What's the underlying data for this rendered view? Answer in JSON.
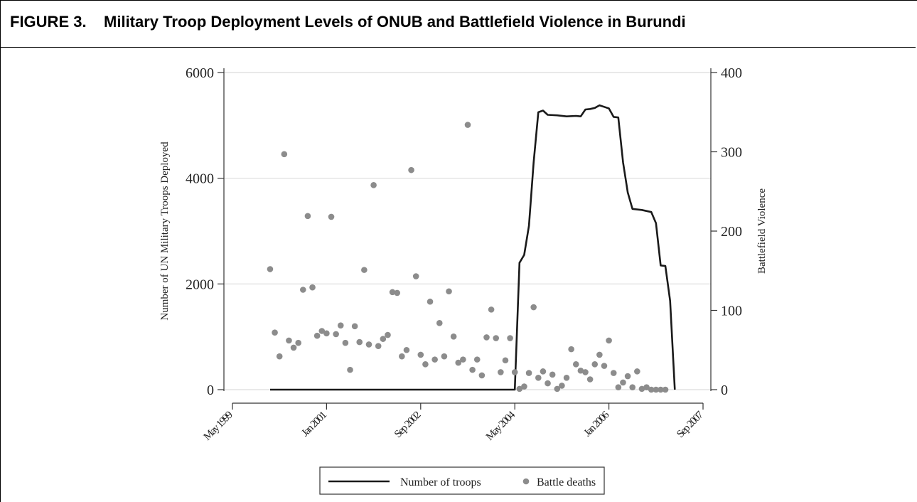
{
  "figure": {
    "title": "FIGURE 3.    Military Troop Deployment Levels of ONUB and Battlefield Violence in Burundi"
  },
  "chart_data": {
    "type": "line",
    "xlabel": "",
    "ylabel_left": "Number of UN Military Troops Deployed",
    "ylabel_right": "Battlefield Violence",
    "ylim_left": [
      0,
      6000
    ],
    "ylim_right": [
      0,
      400
    ],
    "xlim": [
      "1999-05",
      "2007-09"
    ],
    "grid": true,
    "x_ticks": [
      {
        "label": "May 1999",
        "date": "1999-05"
      },
      {
        "label": "Jan 2001",
        "date": "2001-01"
      },
      {
        "label": "Sep 2002",
        "date": "2002-09"
      },
      {
        "label": "May 2004",
        "date": "2004-05"
      },
      {
        "label": "Jan 2006",
        "date": "2006-01"
      },
      {
        "label": "Sep 2007",
        "date": "2007-09"
      }
    ],
    "y_ticks_left": [
      0,
      2000,
      4000,
      6000
    ],
    "y_ticks_right": [
      0,
      100,
      200,
      300,
      400
    ],
    "legend_position": "bottom",
    "series": [
      {
        "name": "Number of troops",
        "axis": "left",
        "style": "line",
        "color": "#1a1a1a",
        "points": [
          [
            "2000-01",
            0
          ],
          [
            "2004-05",
            0
          ],
          [
            "2004-06",
            2400
          ],
          [
            "2004-07",
            2550
          ],
          [
            "2004-08",
            3100
          ],
          [
            "2004-09",
            4300
          ],
          [
            "2004-10",
            5250
          ],
          [
            "2004-11",
            5280
          ],
          [
            "2004-12",
            5200
          ],
          [
            "2005-02",
            5190
          ],
          [
            "2005-04",
            5170
          ],
          [
            "2005-06",
            5180
          ],
          [
            "2005-07",
            5170
          ],
          [
            "2005-08",
            5300
          ],
          [
            "2005-09",
            5310
          ],
          [
            "2005-10",
            5330
          ],
          [
            "2005-11",
            5380
          ],
          [
            "2005-12",
            5350
          ],
          [
            "2006-01",
            5320
          ],
          [
            "2006-02",
            5160
          ],
          [
            "2006-03",
            5150
          ],
          [
            "2006-04",
            4300
          ],
          [
            "2006-05",
            3730
          ],
          [
            "2006-06",
            3420
          ],
          [
            "2006-08",
            3400
          ],
          [
            "2006-10",
            3360
          ],
          [
            "2006-11",
            3150
          ],
          [
            "2006-12",
            2350
          ],
          [
            "2007-01",
            2340
          ],
          [
            "2007-02",
            1680
          ],
          [
            "2007-03",
            0
          ]
        ]
      },
      {
        "name": "Battle deaths",
        "axis": "right",
        "style": "scatter",
        "color": "#8c8c8c",
        "points": [
          [
            "2000-01",
            152
          ],
          [
            "2000-02",
            72
          ],
          [
            "2000-03",
            42
          ],
          [
            "2000-04",
            297
          ],
          [
            "2000-05",
            62
          ],
          [
            "2000-06",
            53
          ],
          [
            "2000-07",
            59
          ],
          [
            "2000-08",
            126
          ],
          [
            "2000-09",
            219
          ],
          [
            "2000-10",
            129
          ],
          [
            "2000-11",
            68
          ],
          [
            "2000-12",
            74
          ],
          [
            "2001-01",
            71
          ],
          [
            "2001-02",
            218
          ],
          [
            "2001-03",
            70
          ],
          [
            "2001-04",
            81
          ],
          [
            "2001-05",
            59
          ],
          [
            "2001-06",
            25
          ],
          [
            "2001-07",
            80
          ],
          [
            "2001-08",
            60
          ],
          [
            "2001-09",
            151
          ],
          [
            "2001-10",
            57
          ],
          [
            "2001-11",
            258
          ],
          [
            "2001-12",
            55
          ],
          [
            "2002-01",
            64
          ],
          [
            "2002-02",
            69
          ],
          [
            "2002-03",
            123
          ],
          [
            "2002-04",
            122
          ],
          [
            "2002-05",
            42
          ],
          [
            "2002-06",
            50
          ],
          [
            "2002-07",
            277
          ],
          [
            "2002-08",
            143
          ],
          [
            "2002-09",
            44
          ],
          [
            "2002-10",
            32
          ],
          [
            "2002-11",
            111
          ],
          [
            "2002-12",
            38
          ],
          [
            "2003-01",
            84
          ],
          [
            "2003-02",
            42
          ],
          [
            "2003-03",
            124
          ],
          [
            "2003-04",
            67
          ],
          [
            "2003-05",
            34
          ],
          [
            "2003-06",
            38
          ],
          [
            "2003-07",
            334
          ],
          [
            "2003-08",
            25
          ],
          [
            "2003-09",
            38
          ],
          [
            "2003-10",
            18
          ],
          [
            "2003-11",
            66
          ],
          [
            "2003-12",
            101
          ],
          [
            "2004-01",
            65
          ],
          [
            "2004-02",
            22
          ],
          [
            "2004-03",
            37
          ],
          [
            "2004-04",
            65
          ],
          [
            "2004-05",
            22
          ],
          [
            "2004-06",
            1
          ],
          [
            "2004-07",
            4
          ],
          [
            "2004-08",
            21
          ],
          [
            "2004-09",
            104
          ],
          [
            "2004-10",
            15
          ],
          [
            "2004-11",
            23
          ],
          [
            "2004-12",
            8
          ],
          [
            "2005-01",
            19
          ],
          [
            "2005-02",
            1
          ],
          [
            "2005-03",
            5
          ],
          [
            "2005-04",
            15
          ],
          [
            "2005-05",
            51
          ],
          [
            "2005-06",
            32
          ],
          [
            "2005-07",
            24
          ],
          [
            "2005-08",
            22
          ],
          [
            "2005-09",
            13
          ],
          [
            "2005-10",
            32
          ],
          [
            "2005-11",
            44
          ],
          [
            "2005-12",
            30
          ],
          [
            "2006-01",
            62
          ],
          [
            "2006-02",
            21
          ],
          [
            "2006-03",
            3
          ],
          [
            "2006-04",
            9
          ],
          [
            "2006-05",
            17
          ],
          [
            "2006-06",
            3
          ],
          [
            "2006-07",
            23
          ],
          [
            "2006-08",
            1
          ],
          [
            "2006-09",
            3
          ],
          [
            "2006-10",
            0
          ],
          [
            "2006-11",
            0
          ],
          [
            "2006-12",
            0
          ],
          [
            "2007-01",
            0
          ]
        ]
      }
    ]
  }
}
